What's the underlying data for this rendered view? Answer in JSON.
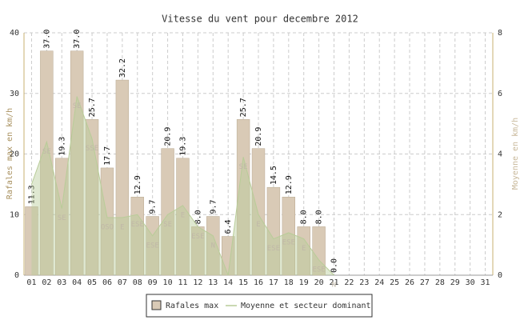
{
  "chart_data": {
    "type": "bar",
    "title": "Vitesse du vent pour decembre 2012",
    "ylabel": "Rafales max en km/h",
    "y2label": "Moyenne en km/h",
    "categories": [
      "01",
      "02",
      "03",
      "04",
      "05",
      "06",
      "07",
      "08",
      "09",
      "10",
      "11",
      "12",
      "13",
      "14",
      "15",
      "16",
      "17",
      "18",
      "19",
      "20",
      "21",
      "22",
      "23",
      "24",
      "25",
      "26",
      "27",
      "28",
      "29",
      "30",
      "31"
    ],
    "series": [
      {
        "name": "Rafales max",
        "color": "#d9cab6",
        "values": [
          11.3,
          37.0,
          19.3,
          37.0,
          25.7,
          17.7,
          32.2,
          12.9,
          9.7,
          20.9,
          19.3,
          8.0,
          9.7,
          6.4,
          25.7,
          20.9,
          14.5,
          12.9,
          8.0,
          8.0,
          0.0,
          null,
          null,
          null,
          null,
          null,
          null,
          null,
          null,
          null,
          null
        ],
        "value_labels": [
          "11.3",
          "37.0",
          "19.3",
          "37.0",
          "25.7",
          "17.7",
          "32.2",
          "12.9",
          "9.7",
          "20.9",
          "19.3",
          "8.0",
          "9.7",
          "6.4",
          "25.7",
          "20.9",
          "14.5",
          "12.9",
          "8.0",
          "8.0",
          "0.0",
          null,
          null,
          null,
          null,
          null,
          null,
          null,
          null,
          null,
          null
        ]
      },
      {
        "name": "Moyenne et secteur dominant",
        "color": "#b8cc98",
        "axis": "y2",
        "values": [
          3.0,
          4.4,
          2.2,
          5.9,
          4.5,
          1.9,
          1.9,
          2.0,
          1.3,
          2.0,
          2.3,
          1.6,
          1.3,
          0.0,
          3.9,
          2.0,
          1.2,
          1.4,
          1.2,
          0.5,
          0.0,
          null,
          null,
          null,
          null,
          null,
          null,
          null,
          null,
          null,
          null
        ],
        "directions": [
          null,
          "SE",
          "SE",
          "SE",
          "SSE",
          "OSO",
          "E",
          "ESE",
          "ESE",
          "SE",
          "E",
          "ESE",
          "N",
          null,
          "SE",
          "E",
          "ESE",
          "ESE",
          "E",
          "ESE",
          "N",
          null,
          null,
          null,
          null,
          null,
          null,
          null,
          null,
          null,
          null
        ]
      }
    ],
    "ylim": [
      0,
      40
    ],
    "yticks": [
      0,
      10,
      20,
      30,
      40
    ],
    "y2lim": [
      0,
      8
    ],
    "y2ticks": [
      0,
      2,
      4,
      6,
      8
    ],
    "grid": true
  }
}
